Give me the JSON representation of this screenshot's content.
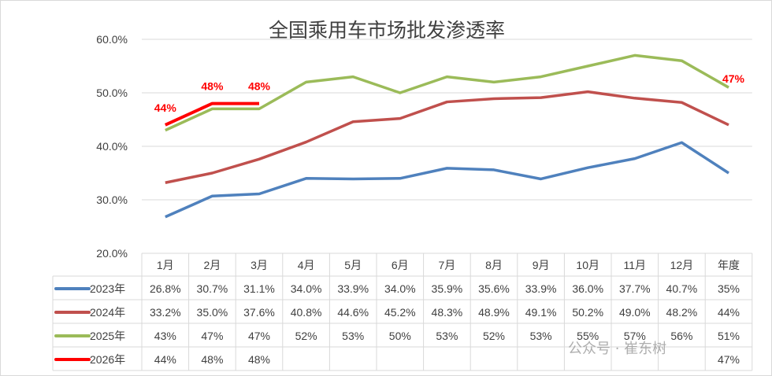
{
  "chart_data": {
    "type": "line",
    "title": "全国乘用车市场批发渗透率",
    "categories": [
      "1月",
      "2月",
      "3月",
      "4月",
      "5月",
      "6月",
      "7月",
      "8月",
      "9月",
      "10月",
      "11月",
      "12月",
      "年度"
    ],
    "ylim": [
      20,
      60
    ],
    "yticks": [
      "20.0%",
      "30.0%",
      "40.0%",
      "50.0%",
      "60.0%"
    ],
    "grid": true,
    "legend": "data-table",
    "series": [
      {
        "name": "2023年",
        "color": "#4f81bd",
        "values": [
          26.8,
          30.7,
          31.1,
          34.0,
          33.9,
          34.0,
          35.9,
          35.6,
          33.9,
          36.0,
          37.7,
          40.7,
          35
        ],
        "labels": [
          "26.8%",
          "30.7%",
          "31.1%",
          "34.0%",
          "33.9%",
          "34.0%",
          "35.9%",
          "35.6%",
          "33.9%",
          "36.0%",
          "37.7%",
          "40.7%",
          "35%"
        ]
      },
      {
        "name": "2024年",
        "color": "#c0504d",
        "values": [
          33.2,
          35.0,
          37.6,
          40.8,
          44.6,
          45.2,
          48.3,
          48.9,
          49.1,
          50.2,
          49.0,
          48.2,
          44
        ],
        "labels": [
          "33.2%",
          "35.0%",
          "37.6%",
          "40.8%",
          "44.6%",
          "45.2%",
          "48.3%",
          "48.9%",
          "49.1%",
          "50.2%",
          "49.0%",
          "48.2%",
          "44%"
        ]
      },
      {
        "name": "2025年",
        "color": "#9bbb59",
        "values": [
          43,
          47,
          47,
          52,
          53,
          50,
          53,
          52,
          53,
          55,
          57,
          56,
          51
        ],
        "labels": [
          "43%",
          "47%",
          "47%",
          "52%",
          "53%",
          "50%",
          "53%",
          "52%",
          "53%",
          "55%",
          "57%",
          "56%",
          "51%"
        ]
      },
      {
        "name": "2026年",
        "color": "#ff0000",
        "values": [
          44,
          48,
          48,
          null,
          null,
          null,
          null,
          null,
          null,
          null,
          null,
          null,
          47
        ],
        "labels": [
          "44%",
          "48%",
          "48%",
          "",
          "",
          "",
          "",
          "",
          "",
          "",
          "",
          "",
          "47%"
        ]
      }
    ],
    "annotations": [
      "44%",
      "48%",
      "48%",
      "47%"
    ]
  },
  "watermark": "公众号 · 崔东树"
}
